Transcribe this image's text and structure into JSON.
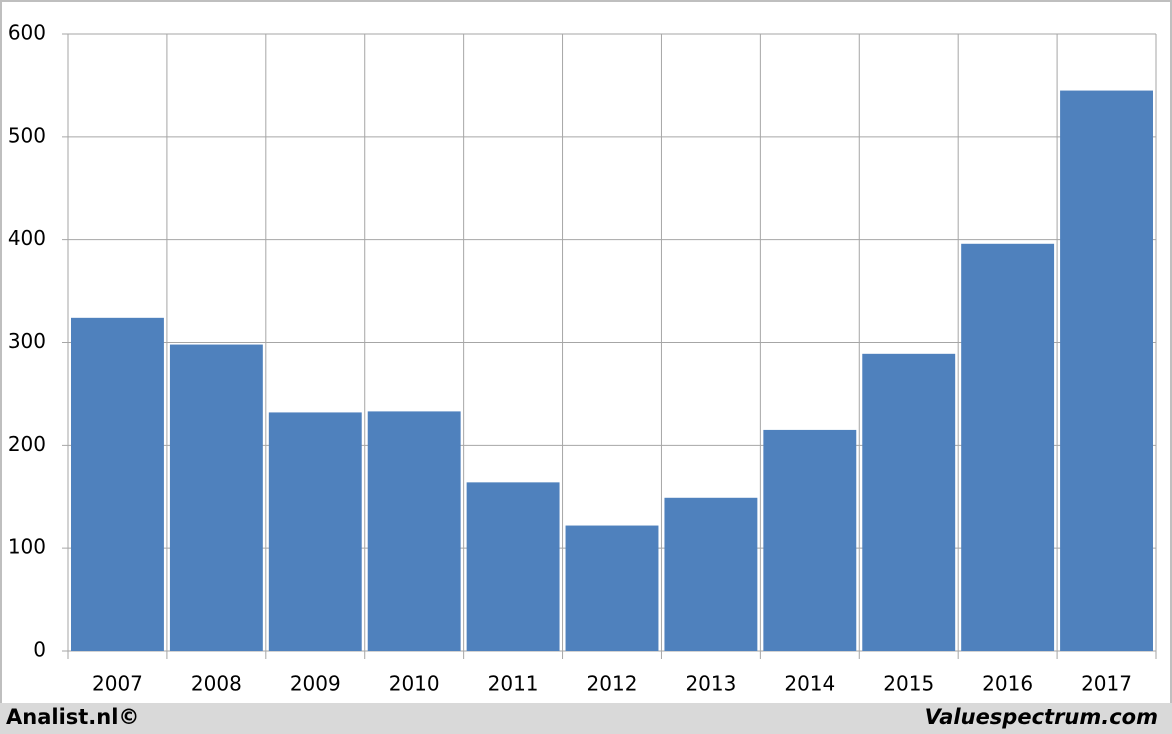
{
  "chart_data": {
    "type": "bar",
    "categories": [
      "2007",
      "2008",
      "2009",
      "2010",
      "2011",
      "2012",
      "2013",
      "2014",
      "2015",
      "2016",
      "2017"
    ],
    "values": [
      324,
      298,
      232,
      233,
      164,
      122,
      149,
      215,
      289,
      396,
      545
    ],
    "color": "#4f81bd",
    "ylim": [
      0,
      600
    ],
    "yticks": [
      0,
      100,
      200,
      300,
      400,
      500,
      600
    ],
    "grid": true
  },
  "footer": {
    "left": "Analist.nl©",
    "right": "Valuespectrum.com"
  }
}
